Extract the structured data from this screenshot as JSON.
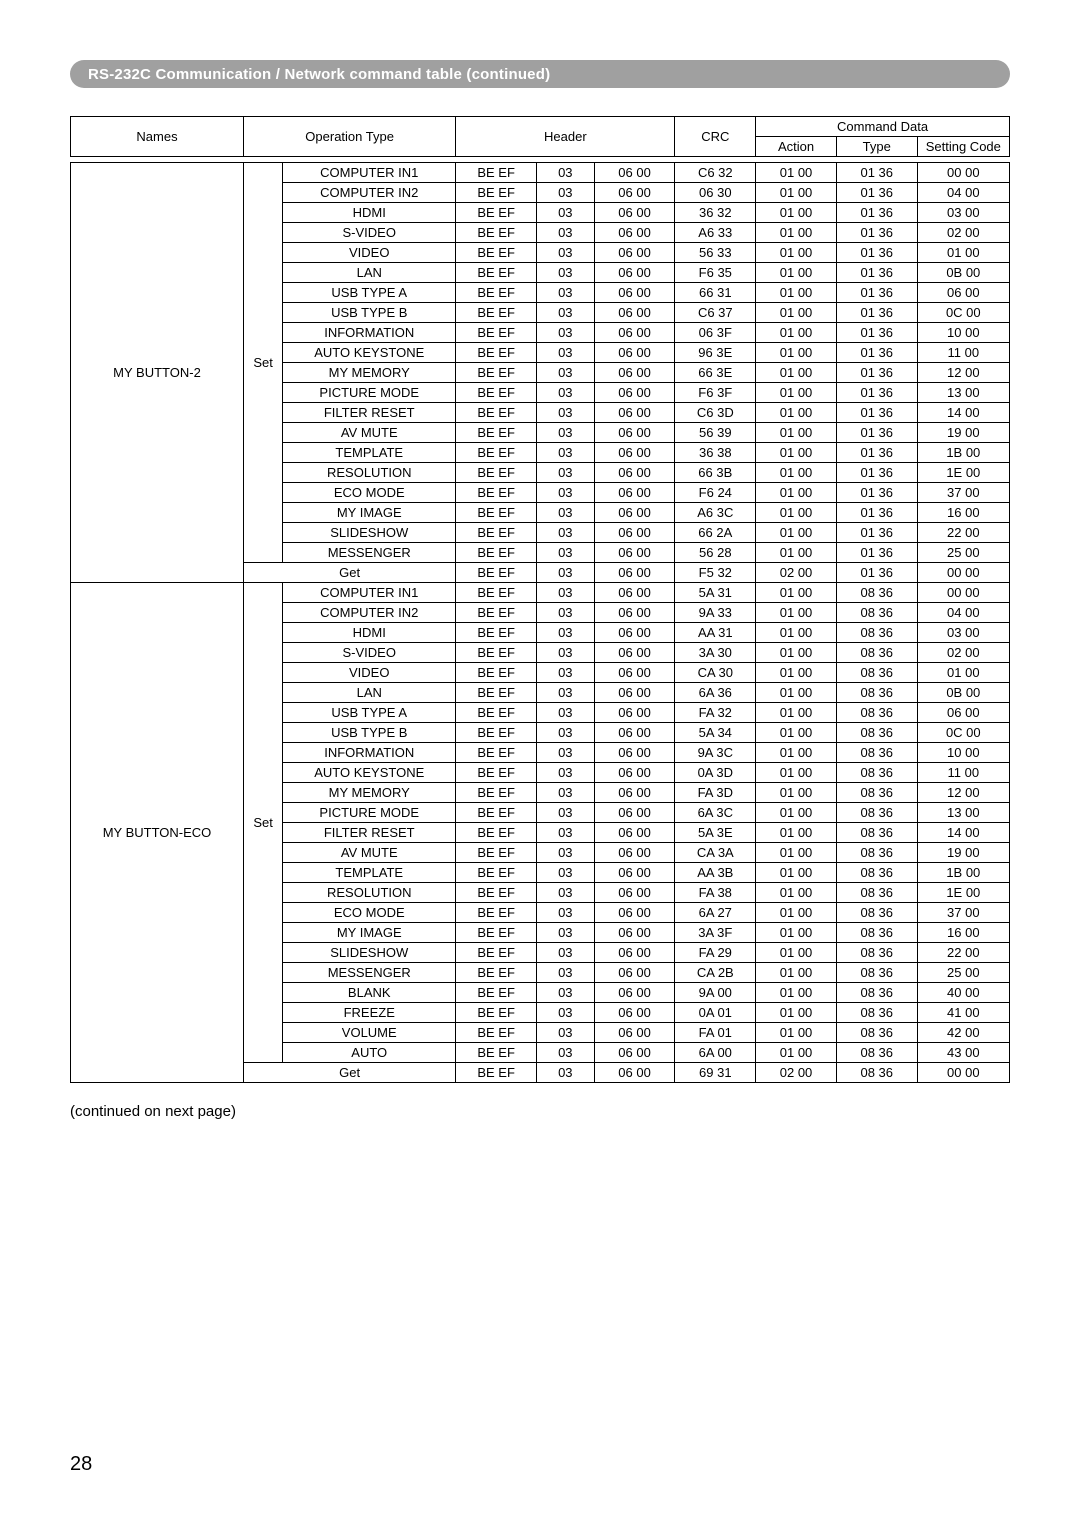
{
  "title": "RS-232C Communication / Network command table (continued)",
  "footer_note": "(continued on next page)",
  "page_number": "28",
  "headers": {
    "names": "Names",
    "operation_type": "Operation Type",
    "header": "Header",
    "command_data": "Command Data",
    "crc": "CRC",
    "action": "Action",
    "type": "Type",
    "setting_code": "Setting Code"
  },
  "sections": [
    {
      "name": "MY BUTTON-2",
      "groups": [
        {
          "op": "Set",
          "rows": [
            {
              "label": "COMPUTER IN1",
              "h1": "BE  EF",
              "h2": "03",
              "h3": "06  00",
              "crc": "C6 32",
              "action": "01  00",
              "type": "01  36",
              "setting": "00  00"
            },
            {
              "label": "COMPUTER IN2",
              "h1": "BE EF",
              "h2": "03",
              "h3": "06 00",
              "crc": "06 30",
              "action": "01 00",
              "type": "01 36",
              "setting": "04 00"
            },
            {
              "label": "HDMI",
              "h1": "BE  EF",
              "h2": "03",
              "h3": "06  00",
              "crc": "36 32",
              "action": "01  00",
              "type": "01  36",
              "setting": "03  00"
            },
            {
              "label": "S-VIDEO",
              "h1": "BE  EF",
              "h2": "03",
              "h3": "06  00",
              "crc": "A6 33",
              "action": "01  00",
              "type": "01  36",
              "setting": "02  00"
            },
            {
              "label": "VIDEO",
              "h1": "BE  EF",
              "h2": "03",
              "h3": "06  00",
              "crc": "56  33",
              "action": "01  00",
              "type": "01  36",
              "setting": "01  00"
            },
            {
              "label": "LAN",
              "h1": "BE EF",
              "h2": "03",
              "h3": "06 00",
              "crc": "F6 35",
              "action": "01 00",
              "type": "01 36",
              "setting": "0B 00"
            },
            {
              "label": "USB TYPE A",
              "h1": "BE EF",
              "h2": "03",
              "h3": "06 00",
              "crc": "66 31",
              "action": "01 00",
              "type": "01 36",
              "setting": "06 00"
            },
            {
              "label": "USB TYPE B",
              "h1": "BE EF",
              "h2": "03",
              "h3": "06 00",
              "crc": "C6 37",
              "action": "01 00",
              "type": "01 36",
              "setting": "0C 00"
            },
            {
              "label": "INFORMATION",
              "h1": "BE  EF",
              "h2": "03",
              "h3": "06  00",
              "crc": "06 3F",
              "action": "01  00",
              "type": "01  36",
              "setting": "10  00"
            },
            {
              "label": "AUTO KEYSTONE",
              "h1": "BE  EF",
              "h2": "03",
              "h3": "06  00",
              "crc": "96  3E",
              "action": "01  00",
              "type": "01  36",
              "setting": "11  00"
            },
            {
              "label": "MY MEMORY",
              "h1": "BE  EF",
              "h2": "03",
              "h3": "06  00",
              "crc": "66  3E",
              "action": "01  00",
              "type": "01  36",
              "setting": "12  00"
            },
            {
              "label": "PICTURE MODE",
              "h1": "BE  EF",
              "h2": "03",
              "h3": "06  00",
              "crc": "F6  3F",
              "action": "01  00",
              "type": "01  36",
              "setting": "13  00"
            },
            {
              "label": "FILTER RESET",
              "h1": "BE  EF",
              "h2": "03",
              "h3": "06  00",
              "crc": "C6  3D",
              "action": "01  00",
              "type": "01  36",
              "setting": "14  00"
            },
            {
              "label": "AV MUTE",
              "h1": "BE  EF",
              "h2": "03",
              "h3": "06  00",
              "crc": "56  39",
              "action": "01  00",
              "type": "01  36",
              "setting": "19  00"
            },
            {
              "label": "TEMPLATE",
              "h1": "BE  EF",
              "h2": "03",
              "h3": "06  00",
              "crc": "36  38",
              "action": "01  00",
              "type": "01  36",
              "setting": "1B  00"
            },
            {
              "label": "RESOLUTION",
              "h1": "BE  EF",
              "h2": "03",
              "h3": "06  00",
              "crc": "66  3B",
              "action": "01  00",
              "type": "01  36",
              "setting": "1E  00"
            },
            {
              "label": "ECO MODE",
              "h1": "BE  EF",
              "h2": "03",
              "h3": "06  00",
              "crc": "F6  24",
              "action": "01  00",
              "type": "01  36",
              "setting": "37  00"
            },
            {
              "label": "MY IMAGE",
              "h1": "BE EF",
              "h2": "03",
              "h3": "06 00",
              "crc": "A6 3C",
              "action": "01 00",
              "type": "01 36",
              "setting": "16 00"
            },
            {
              "label": "SLIDESHOW",
              "h1": "BE EF",
              "h2": "03",
              "h3": "06 00",
              "crc": "66 2A",
              "action": "01 00",
              "type": "01 36",
              "setting": "22 00"
            },
            {
              "label": "MESSENGER",
              "h1": "BE EF",
              "h2": "03",
              "h3": "06 00",
              "crc": "56 28",
              "action": "01 00",
              "type": "01 36",
              "setting": "25 00"
            }
          ]
        },
        {
          "op": "Get",
          "rows": [
            {
              "label": "",
              "h1": "BE  EF",
              "h2": "03",
              "h3": "06  00",
              "crc": "F5 32",
              "action": "02  00",
              "type": "01  36",
              "setting": "00  00"
            }
          ]
        }
      ]
    },
    {
      "name": "MY BUTTON-ECO",
      "groups": [
        {
          "op": "Set",
          "rows": [
            {
              "label": "COMPUTER IN1",
              "h1": "BE  EF",
              "h2": "03",
              "h3": "06  00",
              "crc": "5A 31",
              "action": "01  00",
              "type": "08  36",
              "setting": "00  00"
            },
            {
              "label": "COMPUTER IN2",
              "h1": "BE EF",
              "h2": "03",
              "h3": "06 00",
              "crc": "9A 33",
              "action": "01 00",
              "type": "08 36",
              "setting": "04 00"
            },
            {
              "label": "HDMI",
              "h1": "BE  EF",
              "h2": "03",
              "h3": "06  00",
              "crc": "AA 31",
              "action": "01  00",
              "type": "08  36",
              "setting": "03  00"
            },
            {
              "label": "S-VIDEO",
              "h1": "BE  EF",
              "h2": "03",
              "h3": "06  00",
              "crc": "3A 30",
              "action": "01  00",
              "type": "08  36",
              "setting": "02  00"
            },
            {
              "label": "VIDEO",
              "h1": "BE  EF",
              "h2": "03",
              "h3": "06  00",
              "crc": "CA  30",
              "action": "01  00",
              "type": "08  36",
              "setting": "01  00"
            },
            {
              "label": "LAN",
              "h1": "BE EF",
              "h2": "03",
              "h3": "06 00",
              "crc": "6A 36",
              "action": "01 00",
              "type": "08 36",
              "setting": "0B 00"
            },
            {
              "label": "USB TYPE A",
              "h1": "BE EF",
              "h2": "03",
              "h3": "06 00",
              "crc": "FA 32",
              "action": "01 00",
              "type": "08 36",
              "setting": "06 00"
            },
            {
              "label": "USB TYPE B",
              "h1": "BE EF",
              "h2": "03",
              "h3": "06 00",
              "crc": "5A 34",
              "action": "01 00",
              "type": "08 36",
              "setting": "0C 00"
            },
            {
              "label": "INFORMATION",
              "h1": "BE  EF",
              "h2": "03",
              "h3": "06  00",
              "crc": "9A  3C",
              "action": "01  00",
              "type": "08  36",
              "setting": "10  00"
            },
            {
              "label": "AUTO KEYSTONE",
              "h1": "BE  EF",
              "h2": "03",
              "h3": "06  00",
              "crc": "0A  3D",
              "action": "01  00",
              "type": "08  36",
              "setting": "11  00"
            },
            {
              "label": "MY MEMORY",
              "h1": "BE  EF",
              "h2": "03",
              "h3": "06  00",
              "crc": "FA  3D",
              "action": "01  00",
              "type": "08  36",
              "setting": "12  00"
            },
            {
              "label": "PICTURE MODE",
              "h1": "BE  EF",
              "h2": "03",
              "h3": "06  00",
              "crc": "6A  3C",
              "action": "01  00",
              "type": "08  36",
              "setting": "13  00"
            },
            {
              "label": "FILTER RESET",
              "h1": "BE  EF",
              "h2": "03",
              "h3": "06  00",
              "crc": "5A  3E",
              "action": "01  00",
              "type": "08  36",
              "setting": "14  00"
            },
            {
              "label": "AV MUTE",
              "h1": "BE  EF",
              "h2": "03",
              "h3": "06  00",
              "crc": "CA  3A",
              "action": "01  00",
              "type": "08  36",
              "setting": "19  00"
            },
            {
              "label": "TEMPLATE",
              "h1": "BE  EF",
              "h2": "03",
              "h3": "06  00",
              "crc": "AA  3B",
              "action": "01  00",
              "type": "08  36",
              "setting": "1B  00"
            },
            {
              "label": "RESOLUTION",
              "h1": "BE  EF",
              "h2": "03",
              "h3": "06  00",
              "crc": "FA  38",
              "action": "01  00",
              "type": "08  36",
              "setting": "1E  00"
            },
            {
              "label": "ECO MODE",
              "h1": "BE  EF",
              "h2": "03",
              "h3": "06  00",
              "crc": "6A  27",
              "action": "01  00",
              "type": "08  36",
              "setting": "37  00"
            },
            {
              "label": "MY IMAGE",
              "h1": "BE EF",
              "h2": "03",
              "h3": "06 00",
              "crc": "3A 3F",
              "action": "01 00",
              "type": "08 36",
              "setting": "16 00"
            },
            {
              "label": "SLIDESHOW",
              "h1": "BE EF",
              "h2": "03",
              "h3": "06 00",
              "crc": "FA 29",
              "action": "01 00",
              "type": "08 36",
              "setting": "22 00"
            },
            {
              "label": "MESSENGER",
              "h1": "BE EF",
              "h2": "03",
              "h3": "06 00",
              "crc": "CA 2B",
              "action": "01 00",
              "type": "08 36",
              "setting": "25 00"
            },
            {
              "label": "BLANK",
              "h1": "BE  EF",
              "h2": "03",
              "h3": "06  00",
              "crc": "9A  00",
              "action": "01  00",
              "type": "08  36",
              "setting": "40  00"
            },
            {
              "label": "FREEZE",
              "h1": "BE  EF",
              "h2": "03",
              "h3": "06  00",
              "crc": "0A  01",
              "action": "01  00",
              "type": "08  36",
              "setting": "41  00"
            },
            {
              "label": "VOLUME",
              "h1": "BE  EF",
              "h2": "03",
              "h3": "06  00",
              "crc": "FA  01",
              "action": "01  00",
              "type": "08  36",
              "setting": "42  00"
            },
            {
              "label": "AUTO",
              "h1": "BE  EF",
              "h2": "03",
              "h3": "06  00",
              "crc": "6A  00",
              "action": "01  00",
              "type": "08  36",
              "setting": "43  00"
            }
          ]
        },
        {
          "op": "Get",
          "rows": [
            {
              "label": "",
              "h1": "BE  EF",
              "h2": "03",
              "h3": "06  00",
              "crc": "69  31",
              "action": "02  00",
              "type": "08  36",
              "setting": "00  00"
            }
          ]
        }
      ]
    }
  ]
}
